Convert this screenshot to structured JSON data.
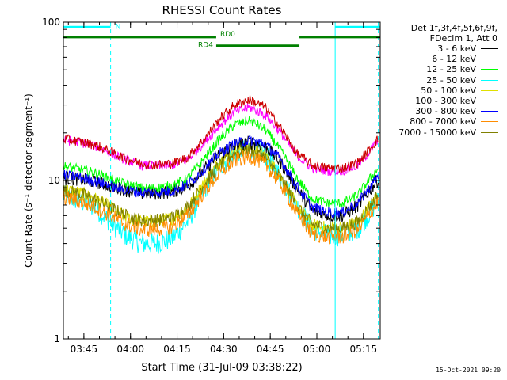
{
  "chart_data": {
    "type": "line",
    "title": "RHESSI Count Rates",
    "xlabel": "Start Time (31-Jul-09 03:38:22)",
    "ylabel": "Count Rate (s⁻¹ detector segment⁻¹)",
    "yscale": "log",
    "ylim": [
      1,
      100
    ],
    "y_ticks": [
      {
        "value": 1,
        "label": "1"
      },
      {
        "value": 10,
        "label": "10"
      },
      {
        "value": 100,
        "label": "100"
      }
    ],
    "xlim_minutes": [
      0,
      102
    ],
    "x_ticks": [
      {
        "minute": 6.6,
        "label": "03:45"
      },
      {
        "minute": 21.6,
        "label": "04:00"
      },
      {
        "minute": 36.6,
        "label": "04:15"
      },
      {
        "minute": 51.6,
        "label": "04:30"
      },
      {
        "minute": 66.6,
        "label": "04:45"
      },
      {
        "minute": 81.6,
        "label": "05:00"
      },
      {
        "minute": 96.6,
        "label": "05:15"
      }
    ],
    "legend_header": [
      "Det 1f,3f,4f,5f,6f,9f,",
      "FDecim 1, Att 0"
    ],
    "legend_position": "right-outside",
    "x_minutes": [
      0,
      5,
      10,
      15,
      20,
      25,
      30,
      35,
      40,
      45,
      50,
      55,
      60,
      65,
      70,
      75,
      80,
      85,
      90,
      95,
      101
    ],
    "series": [
      {
        "name": "3 - 6 keV",
        "color": "#000000",
        "values": [
          10.3,
          10.2,
          9.8,
          9.2,
          8.7,
          8.3,
          8.3,
          8.5,
          9.2,
          11.5,
          14.5,
          16.5,
          17.5,
          16.5,
          13.0,
          9.0,
          6.5,
          6.0,
          6.0,
          7.0,
          10.0
        ]
      },
      {
        "name": "6 - 12 keV",
        "color": "#ff00ff",
        "values": [
          18.0,
          17.5,
          16.5,
          15.0,
          13.5,
          12.5,
          12.3,
          12.5,
          13.5,
          17.0,
          22.0,
          27.0,
          29.0,
          26.0,
          20.0,
          14.5,
          12.0,
          11.5,
          11.5,
          12.5,
          17.5
        ]
      },
      {
        "name": "12 - 25 keV",
        "color": "#00ff00",
        "values": [
          12.3,
          11.8,
          11.2,
          10.3,
          9.5,
          9.0,
          9.0,
          9.3,
          10.3,
          13.5,
          18.0,
          22.5,
          24.0,
          21.0,
          15.5,
          10.5,
          7.7,
          7.2,
          7.2,
          8.2,
          11.8
        ]
      },
      {
        "name": "25 - 50 keV",
        "color": "#00ffff",
        "values": [
          8.0,
          7.5,
          6.8,
          5.5,
          4.5,
          4.0,
          4.0,
          4.3,
          5.5,
          8.5,
          12.0,
          15.0,
          16.0,
          14.5,
          10.5,
          7.0,
          5.0,
          4.5,
          4.5,
          5.0,
          7.3
        ]
      },
      {
        "name": "50 - 100 keV",
        "color": "#e0e000",
        "values": [
          8.8,
          8.4,
          7.7,
          6.8,
          5.9,
          5.5,
          5.5,
          5.8,
          6.7,
          9.5,
          13.0,
          15.5,
          16.2,
          14.5,
          10.5,
          7.0,
          5.2,
          5.0,
          5.0,
          5.5,
          8.0
        ]
      },
      {
        "name": "100 - 300 keV",
        "color": "#cc0000",
        "values": [
          18.3,
          17.7,
          16.8,
          15.3,
          13.8,
          12.8,
          12.6,
          12.8,
          14.0,
          18.0,
          24.0,
          30.0,
          32.5,
          29.0,
          21.5,
          15.0,
          12.5,
          12.0,
          12.0,
          13.0,
          18.0
        ]
      },
      {
        "name": "300 - 800 keV",
        "color": "#0000ff",
        "values": [
          10.8,
          10.5,
          9.9,
          9.3,
          8.7,
          8.4,
          8.4,
          8.6,
          9.4,
          11.7,
          14.8,
          17.0,
          18.0,
          17.0,
          13.5,
          9.3,
          6.8,
          6.3,
          6.3,
          7.3,
          10.5
        ]
      },
      {
        "name": "800 - 7000 keV",
        "color": "#ff8c00",
        "values": [
          7.8,
          7.4,
          6.8,
          6.0,
          5.3,
          4.9,
          4.9,
          5.1,
          6.0,
          8.3,
          11.0,
          13.3,
          14.2,
          12.7,
          9.5,
          6.3,
          4.6,
          4.4,
          4.4,
          4.9,
          7.2
        ]
      },
      {
        "name": "7000 - 15000 keV",
        "color": "#808000",
        "values": [
          8.7,
          8.3,
          7.6,
          6.8,
          6.0,
          5.6,
          5.6,
          5.8,
          6.8,
          9.3,
          12.4,
          14.8,
          15.7,
          14.0,
          10.3,
          7.0,
          5.3,
          5.0,
          5.0,
          5.5,
          8.0
        ]
      }
    ],
    "annotations": [
      {
        "text": "N",
        "color": "#00ffff",
        "minute_start": 0,
        "minute_end": 15.2,
        "y_value": 93
      },
      {
        "text": "RD0",
        "color": "#008000",
        "minute_start": 0,
        "minute_end": 49.2,
        "y_value": 80.5
      },
      {
        "text": "RD4",
        "color": "#008000",
        "minute_start": 49.2,
        "minute_end": 76,
        "y_value": 71
      },
      {
        "text": "",
        "color": "#008000",
        "minute_start": 76,
        "minute_end": 102,
        "y_value": 80.5
      },
      {
        "text": "",
        "color": "#00ffff",
        "minute_start": 87.5,
        "minute_end": 102,
        "y_value": 93
      }
    ],
    "vertical_markers": [
      {
        "minute": 0,
        "style": "solid",
        "color": "#00ffff"
      },
      {
        "minute": 15.2,
        "style": "dashed",
        "color": "#00ffff"
      },
      {
        "minute": 87.5,
        "style": "solid",
        "color": "#00ffff"
      },
      {
        "minute": 101.4,
        "style": "dashed",
        "color": "#00ffff"
      }
    ],
    "grid": false
  },
  "timestamp": "15-Oct-2021 09:20"
}
